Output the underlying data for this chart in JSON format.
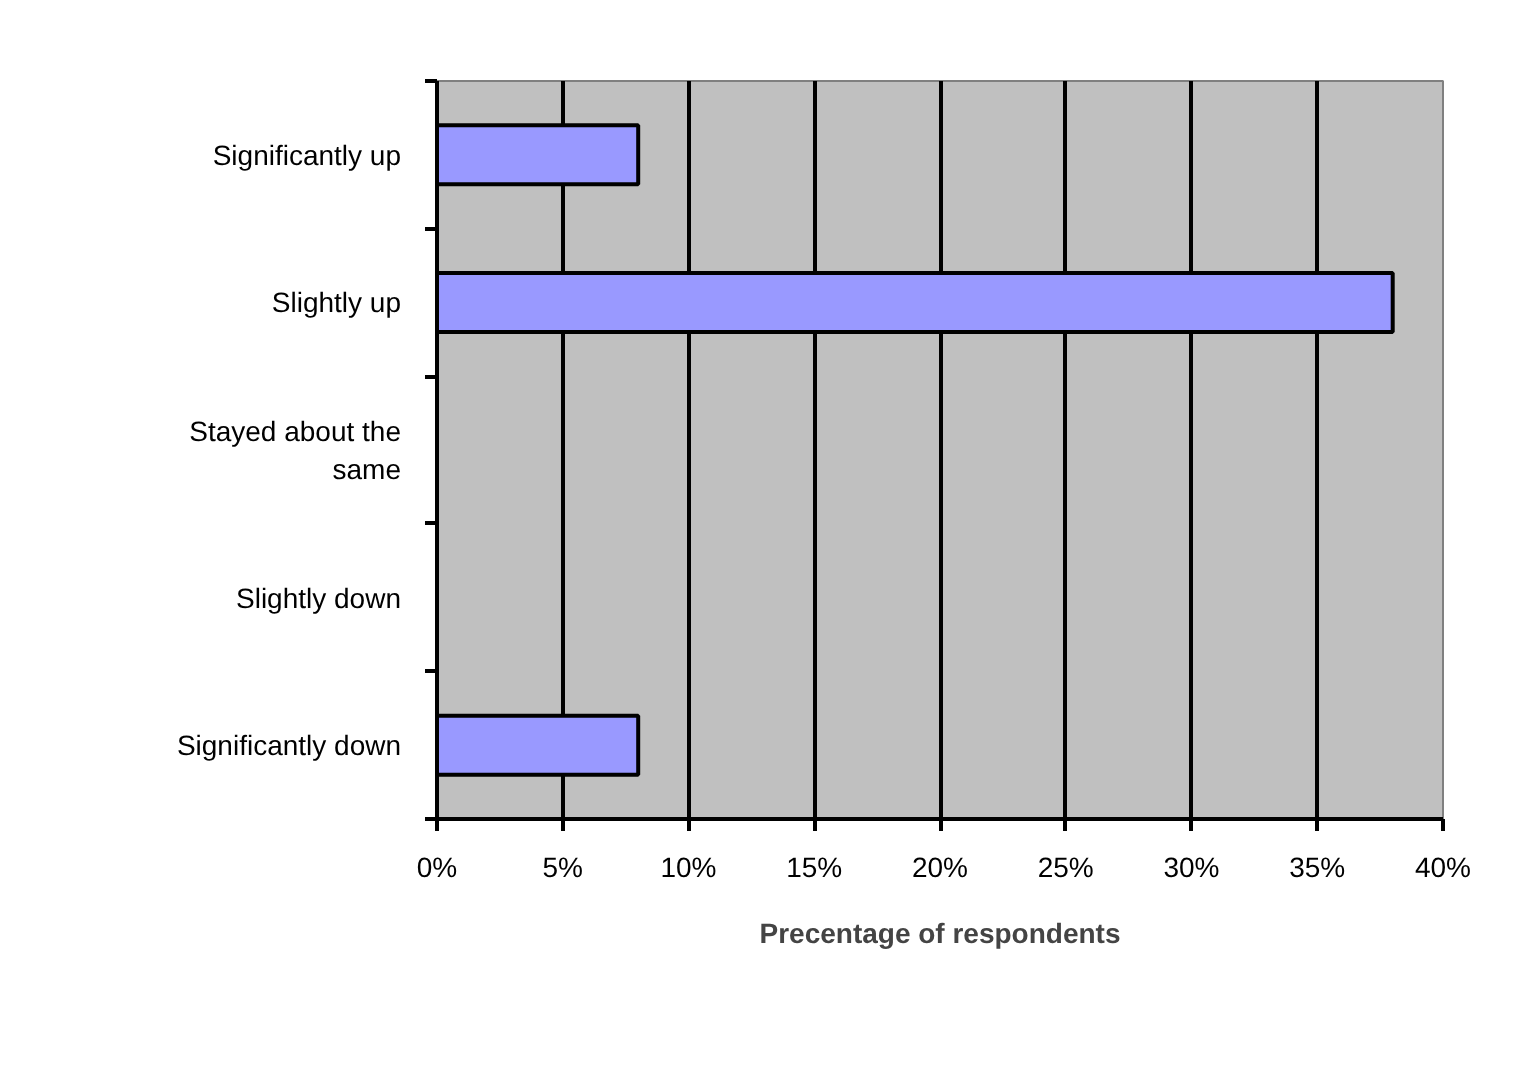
{
  "chart_data": {
    "type": "bar",
    "orientation": "horizontal",
    "xlabel": "Precentage of respondents",
    "categories": [
      "Significantly up",
      "Slightly up",
      "Stayed about the same",
      "Slightly down",
      "Significantly down"
    ],
    "values": [
      8,
      38,
      0,
      0,
      8
    ],
    "color": "#9999ff",
    "xlim": [
      0,
      40
    ],
    "xticks": [
      {
        "value": 0,
        "label": "0%"
      },
      {
        "value": 5,
        "label": "5%"
      },
      {
        "value": 10,
        "label": "10%"
      },
      {
        "value": 15,
        "label": "15%"
      },
      {
        "value": 20,
        "label": "20%"
      },
      {
        "value": 25,
        "label": "25%"
      },
      {
        "value": 30,
        "label": "30%"
      },
      {
        "value": 35,
        "label": "35%"
      },
      {
        "value": 40,
        "label": "40%"
      }
    ],
    "grid": "x"
  }
}
